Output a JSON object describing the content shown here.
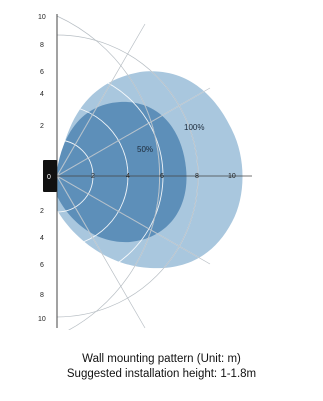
{
  "diagram": {
    "y_axis_ticks_top": [
      "10",
      "8",
      "6",
      "4",
      "2"
    ],
    "y_axis_tick_center": "0",
    "y_axis_ticks_bottom": [
      "2",
      "4",
      "6",
      "8",
      "10"
    ],
    "x_axis_ticks": [
      "2",
      "4",
      "6",
      "8",
      "10"
    ],
    "zones": [
      {
        "label": "100%",
        "range_m": 10,
        "color": "#a9c7de"
      },
      {
        "label": "50%",
        "range_m": 7,
        "color": "#5d8fb9"
      }
    ],
    "sensor_color": "#111111"
  },
  "caption": {
    "line1": "Wall mounting pattern (Unit: m)",
    "line2": "Suggested installation height: 1-1.8m"
  }
}
